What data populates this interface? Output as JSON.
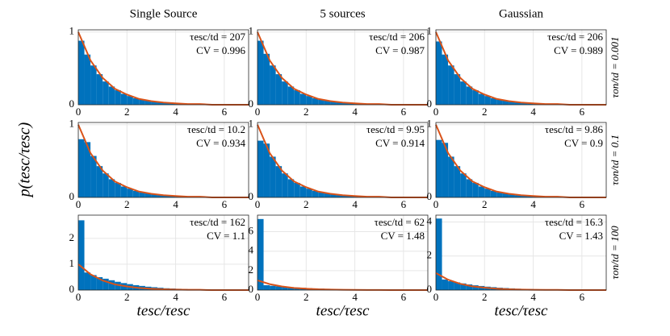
{
  "ylabel": "p(tesc/τesc)",
  "chart_data": [
    {
      "type": "histogram",
      "title": "Single Source",
      "annotations": [
        "τesc/td = 207",
        "CV = 0.996"
      ],
      "color": "#0072bd",
      "curve_color": "#d95319",
      "grid": true,
      "xlim": [
        0,
        7
      ],
      "xticks": [
        0,
        2,
        4,
        6
      ],
      "ylim": [
        0,
        1.03
      ],
      "yticks": [
        0,
        1
      ],
      "bins": [
        0,
        0.25,
        0.5,
        0.75,
        1,
        1.25,
        1.5,
        1.75,
        2,
        2.25,
        2.5,
        2.75,
        3,
        3.25,
        3.5,
        3.75,
        4,
        4.25,
        4.5,
        4.75,
        5,
        5.25,
        5.5,
        5.75,
        6,
        6.25,
        6.5,
        6.75,
        7
      ],
      "counts": [
        0.88,
        0.69,
        0.54,
        0.42,
        0.32,
        0.25,
        0.2,
        0.15,
        0.12,
        0.09,
        0.07,
        0.06,
        0.04,
        0.03,
        0.03,
        0.02,
        0.02,
        0.01,
        0.01,
        0.01,
        0.01,
        0.01,
        0,
        0,
        0,
        0,
        0,
        0
      ],
      "curve_x": [
        0,
        0.5,
        1,
        1.5,
        2,
        2.5,
        3,
        3.5,
        4,
        4.5,
        5,
        5.5,
        6,
        6.5,
        7
      ],
      "curve_values": [
        1,
        0.61,
        0.37,
        0.22,
        0.14,
        0.08,
        0.05,
        0.03,
        0.02,
        0.01,
        0.01,
        0,
        0,
        0,
        0
      ]
    },
    {
      "type": "histogram",
      "title": "5 sources",
      "annotations": [
        "τesc/td = 206",
        "CV = 0.987"
      ],
      "color": "#0072bd",
      "curve_color": "#d95319",
      "grid": true,
      "xlim": [
        0,
        7
      ],
      "xticks": [
        0,
        2,
        4,
        6
      ],
      "ylim": [
        0,
        1.03
      ],
      "yticks": [
        0,
        1
      ],
      "bins": [
        0,
        0.25,
        0.5,
        0.75,
        1,
        1.25,
        1.5,
        1.75,
        2,
        2.25,
        2.5,
        2.75,
        3,
        3.25,
        3.5,
        3.75,
        4,
        4.25,
        4.5,
        4.75,
        5,
        5.25,
        5.5,
        5.75,
        6,
        6.25,
        6.5,
        6.75,
        7
      ],
      "counts": [
        0.88,
        0.7,
        0.54,
        0.42,
        0.32,
        0.25,
        0.2,
        0.15,
        0.12,
        0.09,
        0.07,
        0.06,
        0.04,
        0.03,
        0.03,
        0.02,
        0.02,
        0.01,
        0.01,
        0.01,
        0.01,
        0.01,
        0,
        0,
        0,
        0,
        0,
        0
      ],
      "curve_x": [
        0,
        0.5,
        1,
        1.5,
        2,
        2.5,
        3,
        3.5,
        4,
        4.5,
        5,
        5.5,
        6,
        6.5,
        7
      ],
      "curve_values": [
        1,
        0.61,
        0.37,
        0.22,
        0.14,
        0.08,
        0.05,
        0.03,
        0.02,
        0.01,
        0.01,
        0,
        0,
        0,
        0
      ]
    },
    {
      "type": "histogram",
      "title": "Gaussian",
      "row_label": "τon/td = 0.001",
      "annotations": [
        "τesc/td = 206",
        "CV = 0.989"
      ],
      "color": "#0072bd",
      "curve_color": "#d95319",
      "grid": true,
      "xlim": [
        0,
        7
      ],
      "xticks": [
        0,
        2,
        4,
        6
      ],
      "ylim": [
        0,
        1.03
      ],
      "yticks": [
        0,
        1
      ],
      "bins": [
        0,
        0.25,
        0.5,
        0.75,
        1,
        1.25,
        1.5,
        1.75,
        2,
        2.25,
        2.5,
        2.75,
        3,
        3.25,
        3.5,
        3.75,
        4,
        4.25,
        4.5,
        4.75,
        5,
        5.25,
        5.5,
        5.75,
        6,
        6.25,
        6.5,
        6.75,
        7
      ],
      "counts": [
        0.87,
        0.69,
        0.54,
        0.42,
        0.32,
        0.25,
        0.2,
        0.15,
        0.12,
        0.09,
        0.07,
        0.06,
        0.04,
        0.03,
        0.03,
        0.02,
        0.02,
        0.01,
        0.01,
        0.01,
        0.01,
        0.01,
        0,
        0,
        0,
        0,
        0,
        0
      ],
      "curve_x": [
        0,
        0.5,
        1,
        1.5,
        2,
        2.5,
        3,
        3.5,
        4,
        4.5,
        5,
        5.5,
        6,
        6.5,
        7
      ],
      "curve_values": [
        1,
        0.61,
        0.37,
        0.22,
        0.14,
        0.08,
        0.05,
        0.03,
        0.02,
        0.01,
        0.01,
        0,
        0,
        0,
        0
      ]
    },
    {
      "type": "histogram",
      "annotations": [
        "τesc/td = 10.2",
        "CV = 0.934"
      ],
      "color": "#0072bd",
      "curve_color": "#d95319",
      "grid": true,
      "xlim": [
        0,
        7
      ],
      "xticks": [
        0,
        2,
        4,
        6
      ],
      "ylim": [
        0,
        1.03
      ],
      "yticks": [
        0,
        1
      ],
      "bins": [
        0,
        0.25,
        0.5,
        0.75,
        1,
        1.25,
        1.5,
        1.75,
        2,
        2.25,
        2.5,
        2.75,
        3,
        3.25,
        3.5,
        3.75,
        4,
        4.25,
        4.5,
        4.75,
        5,
        5.25,
        5.5,
        5.75,
        6,
        6.25,
        6.5,
        6.75,
        7
      ],
      "counts": [
        0.8,
        0.76,
        0.57,
        0.43,
        0.33,
        0.25,
        0.2,
        0.15,
        0.12,
        0.09,
        0.07,
        0.06,
        0.04,
        0.03,
        0.03,
        0.02,
        0.02,
        0.01,
        0.01,
        0.01,
        0.01,
        0.01,
        0,
        0,
        0,
        0,
        0,
        0
      ],
      "curve_x": [
        0,
        0.5,
        1,
        1.5,
        2,
        2.5,
        3,
        3.5,
        4,
        4.5,
        5,
        5.5,
        6,
        6.5,
        7
      ],
      "curve_values": [
        1,
        0.61,
        0.37,
        0.22,
        0.14,
        0.08,
        0.05,
        0.03,
        0.02,
        0.01,
        0.01,
        0,
        0,
        0,
        0
      ]
    },
    {
      "type": "histogram",
      "annotations": [
        "τesc/td = 9.95",
        "CV = 0.914"
      ],
      "color": "#0072bd",
      "curve_color": "#d95319",
      "grid": true,
      "xlim": [
        0,
        7
      ],
      "xticks": [
        0,
        2,
        4,
        6
      ],
      "ylim": [
        0,
        1.03
      ],
      "yticks": [
        0,
        1
      ],
      "bins": [
        0,
        0.25,
        0.5,
        0.75,
        1,
        1.25,
        1.5,
        1.75,
        2,
        2.25,
        2.5,
        2.75,
        3,
        3.25,
        3.5,
        3.75,
        4,
        4.25,
        4.5,
        4.75,
        5,
        5.25,
        5.5,
        5.75,
        6,
        6.25,
        6.5,
        6.75,
        7
      ],
      "counts": [
        0.78,
        0.74,
        0.56,
        0.43,
        0.33,
        0.25,
        0.2,
        0.15,
        0.12,
        0.09,
        0.07,
        0.06,
        0.04,
        0.03,
        0.03,
        0.02,
        0.02,
        0.01,
        0.01,
        0.01,
        0.01,
        0.01,
        0,
        0,
        0,
        0,
        0,
        0
      ],
      "curve_x": [
        0,
        0.5,
        1,
        1.5,
        2,
        2.5,
        3,
        3.5,
        4,
        4.5,
        5,
        5.5,
        6,
        6.5,
        7
      ],
      "curve_values": [
        1,
        0.61,
        0.37,
        0.22,
        0.14,
        0.08,
        0.05,
        0.03,
        0.02,
        0.01,
        0.01,
        0,
        0,
        0,
        0
      ]
    },
    {
      "type": "histogram",
      "row_label": "τon/td = 0.1",
      "annotations": [
        "τesc/td = 9.86",
        "CV = 0.9"
      ],
      "color": "#0072bd",
      "curve_color": "#d95319",
      "grid": true,
      "xlim": [
        0,
        7
      ],
      "xticks": [
        0,
        2,
        4,
        6
      ],
      "ylim": [
        0,
        1.03
      ],
      "yticks": [
        0,
        1
      ],
      "bins": [
        0,
        0.25,
        0.5,
        0.75,
        1,
        1.25,
        1.5,
        1.75,
        2,
        2.25,
        2.5,
        2.75,
        3,
        3.25,
        3.5,
        3.75,
        4,
        4.25,
        4.5,
        4.75,
        5,
        5.25,
        5.5,
        5.75,
        6,
        6.25,
        6.5,
        6.75,
        7
      ],
      "counts": [
        0.79,
        0.75,
        0.56,
        0.43,
        0.33,
        0.25,
        0.2,
        0.15,
        0.12,
        0.09,
        0.07,
        0.06,
        0.04,
        0.03,
        0.03,
        0.02,
        0.02,
        0.01,
        0.01,
        0.01,
        0.01,
        0.01,
        0,
        0,
        0,
        0,
        0,
        0
      ],
      "curve_x": [
        0,
        0.5,
        1,
        1.5,
        2,
        2.5,
        3,
        3.5,
        4,
        4.5,
        5,
        5.5,
        6,
        6.5,
        7
      ],
      "curve_values": [
        1,
        0.61,
        0.37,
        0.22,
        0.14,
        0.08,
        0.05,
        0.03,
        0.02,
        0.01,
        0.01,
        0,
        0,
        0,
        0
      ]
    },
    {
      "type": "histogram",
      "xlabel": "tesc/τesc",
      "annotations": [
        "τesc/td = 162",
        "CV = 1.1"
      ],
      "color": "#0072bd",
      "curve_color": "#d95319",
      "grid": true,
      "xlim": [
        0,
        7
      ],
      "xticks": [
        0,
        2,
        4,
        6
      ],
      "ylim": [
        0,
        2.9
      ],
      "yticks": [
        0,
        1,
        2
      ],
      "bins": [
        0,
        0.25,
        0.5,
        0.75,
        1,
        1.25,
        1.5,
        1.75,
        2,
        2.25,
        2.5,
        2.75,
        3,
        3.25,
        3.5,
        3.75,
        4,
        4.25,
        4.5,
        4.75,
        5,
        5.25,
        5.5,
        5.75,
        6,
        6.25,
        6.5,
        6.75,
        7
      ],
      "counts": [
        2.7,
        0.68,
        0.58,
        0.5,
        0.44,
        0.38,
        0.32,
        0.27,
        0.23,
        0.19,
        0.16,
        0.13,
        0.11,
        0.09,
        0.07,
        0.06,
        0.05,
        0.04,
        0.03,
        0.03,
        0.02,
        0.02,
        0.01,
        0.01,
        0.01,
        0.01,
        0,
        0
      ],
      "curve_x": [
        0,
        0.5,
        1,
        1.5,
        2,
        2.5,
        3,
        3.5,
        4,
        4.5,
        5,
        5.5,
        6,
        6.5,
        7
      ],
      "curve_values": [
        1,
        0.61,
        0.37,
        0.22,
        0.14,
        0.08,
        0.05,
        0.03,
        0.02,
        0.01,
        0.01,
        0,
        0,
        0,
        0
      ]
    },
    {
      "type": "histogram",
      "xlabel": "tesc/τesc",
      "annotations": [
        "τesc/td = 62",
        "CV = 1.48"
      ],
      "color": "#0072bd",
      "curve_color": "#d95319",
      "grid": true,
      "xlim": [
        0,
        7
      ],
      "xticks": [
        0,
        2,
        4,
        6
      ],
      "ylim": [
        0,
        7.7
      ],
      "yticks": [
        0,
        2,
        4,
        6
      ],
      "bins": [
        0,
        0.25,
        0.5,
        0.75,
        1,
        1.25,
        1.5,
        1.75,
        2,
        2.25,
        2.5,
        2.75,
        3,
        3.25,
        3.5,
        3.75,
        4,
        4.25,
        4.5,
        4.75,
        5,
        5.25,
        5.5,
        5.75,
        6,
        6.25,
        6.5,
        6.75,
        7
      ],
      "counts": [
        7.3,
        0.5,
        0.44,
        0.39,
        0.34,
        0.3,
        0.26,
        0.23,
        0.2,
        0.17,
        0.15,
        0.13,
        0.11,
        0.09,
        0.08,
        0.07,
        0.06,
        0.05,
        0.04,
        0.03,
        0.03,
        0.02,
        0.02,
        0.02,
        0.01,
        0.01,
        0.01,
        0.01
      ],
      "curve_x": [
        0,
        0.5,
        1,
        1.5,
        2,
        2.5,
        3,
        3.5,
        4,
        4.5,
        5,
        5.5,
        6,
        6.5,
        7
      ],
      "curve_values": [
        1,
        0.61,
        0.37,
        0.22,
        0.14,
        0.08,
        0.05,
        0.03,
        0.02,
        0.01,
        0.01,
        0,
        0,
        0,
        0
      ]
    },
    {
      "type": "histogram",
      "xlabel": "tesc/τesc",
      "row_label": "τon/td = 100",
      "annotations": [
        "τesc/td = 16.3",
        "CV = 1.43"
      ],
      "color": "#0072bd",
      "curve_color": "#d95319",
      "grid": true,
      "xlim": [
        0,
        7
      ],
      "xticks": [
        0,
        2,
        4,
        6
      ],
      "ylim": [
        0,
        4.4
      ],
      "yticks": [
        0,
        2,
        4
      ],
      "bins": [
        0,
        0.25,
        0.5,
        0.75,
        1,
        1.25,
        1.5,
        1.75,
        2,
        2.25,
        2.5,
        2.75,
        3,
        3.25,
        3.5,
        3.75,
        4,
        4.25,
        4.5,
        4.75,
        5,
        5.25,
        5.5,
        5.75,
        6,
        6.25,
        6.5,
        6.75,
        7
      ],
      "counts": [
        4.2,
        0.62,
        0.52,
        0.45,
        0.39,
        0.33,
        0.28,
        0.24,
        0.2,
        0.17,
        0.14,
        0.12,
        0.1,
        0.08,
        0.07,
        0.06,
        0.05,
        0.04,
        0.03,
        0.03,
        0.02,
        0.02,
        0.01,
        0.01,
        0.01,
        0.01,
        0,
        0
      ],
      "curve_x": [
        0,
        0.5,
        1,
        1.5,
        2,
        2.5,
        3,
        3.5,
        4,
        4.5,
        5,
        5.5,
        6,
        6.5,
        7
      ],
      "curve_values": [
        1,
        0.61,
        0.37,
        0.22,
        0.14,
        0.08,
        0.05,
        0.03,
        0.02,
        0.01,
        0.01,
        0,
        0,
        0,
        0
      ]
    }
  ]
}
